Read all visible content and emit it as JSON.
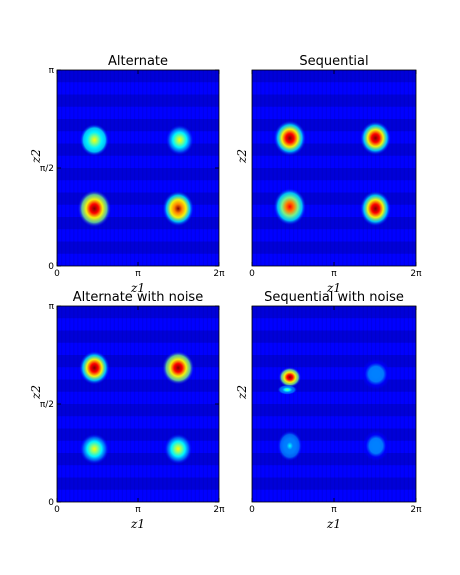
{
  "colors": {
    "colormap": [
      "#00008f",
      "#0000ff",
      "#0080ff",
      "#00ffff",
      "#80ff80",
      "#ffff00",
      "#ff8000",
      "#ff0000",
      "#800000"
    ],
    "background": "#ffffff"
  },
  "chart_data": [
    {
      "type": "heatmap",
      "title": "Alternate",
      "xlabel": "z1",
      "ylabel": "z2",
      "xlim": [
        0,
        6.2832
      ],
      "ylim": [
        0,
        3.1416
      ],
      "x_ticks": [
        {
          "value": 0,
          "label": "0"
        },
        {
          "value": 3.1416,
          "label": "π"
        },
        {
          "value": 6.2832,
          "label": "2π"
        }
      ],
      "y_ticks": [
        {
          "value": 0,
          "label": "0"
        },
        {
          "value": 1.5708,
          "label": "π/2"
        },
        {
          "value": 3.1416,
          "label": "π"
        }
      ],
      "show_xlabel": true,
      "show_ylabel": true,
      "show_xticks": true,
      "show_yticks": true,
      "blobs": [
        {
          "x": 1.45,
          "y": 2.02,
          "sx": 0.42,
          "sy": 0.19,
          "peak": 0.58
        },
        {
          "x": 4.76,
          "y": 2.02,
          "sx": 0.4,
          "sy": 0.18,
          "peak": 0.55
        },
        {
          "x": 1.45,
          "y": 0.92,
          "sx": 0.48,
          "sy": 0.22,
          "peak": 1.0
        },
        {
          "x": 4.7,
          "y": 0.92,
          "sx": 0.45,
          "sy": 0.21,
          "peak": 0.88
        }
      ]
    },
    {
      "type": "heatmap",
      "title": "Sequential",
      "xlabel": "z1",
      "ylabel": "z2",
      "xlim": [
        0,
        6.2832
      ],
      "ylim": [
        0,
        3.1416
      ],
      "x_ticks": [
        {
          "value": 0,
          "label": "0"
        },
        {
          "value": 3.1416,
          "label": "π"
        },
        {
          "value": 6.2832,
          "label": "2π"
        }
      ],
      "y_ticks": [],
      "show_xlabel": true,
      "show_ylabel": true,
      "show_xticks": true,
      "show_yticks": false,
      "blobs": [
        {
          "x": 1.45,
          "y": 2.05,
          "sx": 0.46,
          "sy": 0.21,
          "peak": 0.95
        },
        {
          "x": 4.73,
          "y": 2.05,
          "sx": 0.44,
          "sy": 0.2,
          "peak": 0.92
        },
        {
          "x": 1.45,
          "y": 0.95,
          "sx": 0.46,
          "sy": 0.22,
          "peak": 0.8
        },
        {
          "x": 4.73,
          "y": 0.92,
          "sx": 0.44,
          "sy": 0.21,
          "peak": 0.95
        }
      ]
    },
    {
      "type": "heatmap",
      "title": "Alternate with noise",
      "xlabel": "z1",
      "ylabel": "z2",
      "xlim": [
        0,
        6.2832
      ],
      "ylim": [
        0,
        3.1416
      ],
      "x_ticks": [
        {
          "value": 0,
          "label": "0"
        },
        {
          "value": 3.1416,
          "label": "π"
        },
        {
          "value": 6.2832,
          "label": "2π"
        }
      ],
      "y_ticks": [
        {
          "value": 0,
          "label": "0"
        },
        {
          "value": 1.5708,
          "label": "π/2"
        },
        {
          "value": 3.1416,
          "label": "π"
        }
      ],
      "show_xlabel": true,
      "show_ylabel": true,
      "show_xticks": true,
      "show_yticks": true,
      "blobs": [
        {
          "x": 1.45,
          "y": 2.15,
          "sx": 0.44,
          "sy": 0.2,
          "peak": 0.95
        },
        {
          "x": 4.7,
          "y": 2.15,
          "sx": 0.46,
          "sy": 0.2,
          "peak": 0.98
        },
        {
          "x": 1.45,
          "y": 0.85,
          "sx": 0.42,
          "sy": 0.18,
          "peak": 0.52
        },
        {
          "x": 4.7,
          "y": 0.85,
          "sx": 0.4,
          "sy": 0.18,
          "peak": 0.5
        }
      ]
    },
    {
      "type": "heatmap",
      "title": "Sequential with noise",
      "xlabel": "z1",
      "ylabel": "z2",
      "xlim": [
        0,
        6.2832
      ],
      "ylim": [
        0,
        3.1416
      ],
      "x_ticks": [
        {
          "value": 0,
          "label": "0"
        },
        {
          "value": 3.1416,
          "label": "π"
        },
        {
          "value": 6.2832,
          "label": "2π"
        }
      ],
      "y_ticks": [],
      "show_xlabel": true,
      "show_ylabel": true,
      "show_xticks": true,
      "show_yticks": false,
      "blobs": [
        {
          "x": 1.45,
          "y": 2.0,
          "sx": 0.32,
          "sy": 0.12,
          "peak": 1.0
        },
        {
          "x": 1.35,
          "y": 1.8,
          "sx": 0.28,
          "sy": 0.06,
          "peak": 0.35
        },
        {
          "x": 4.75,
          "y": 2.05,
          "sx": 0.42,
          "sy": 0.18,
          "peak": 0.12
        },
        {
          "x": 1.45,
          "y": 0.9,
          "sx": 0.35,
          "sy": 0.18,
          "peak": 0.2
        },
        {
          "x": 4.75,
          "y": 0.9,
          "sx": 0.38,
          "sy": 0.18,
          "peak": 0.15
        }
      ]
    }
  ]
}
